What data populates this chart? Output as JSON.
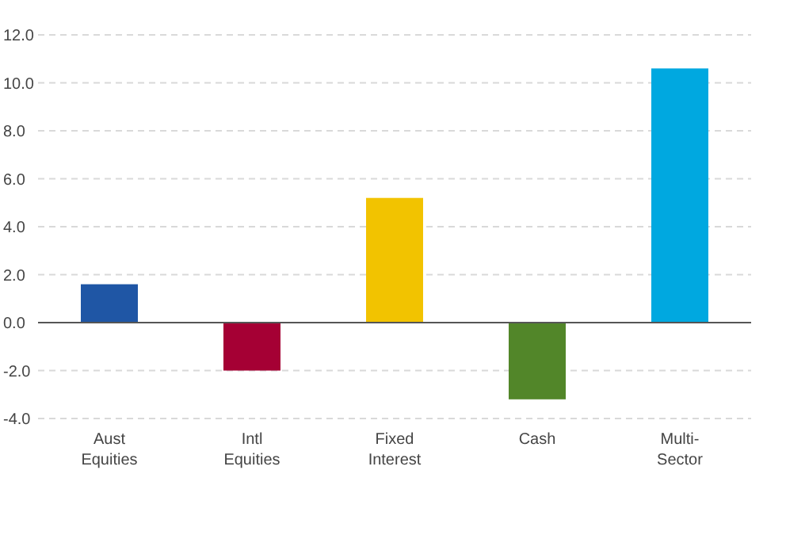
{
  "chart_data": {
    "type": "bar",
    "categories": [
      "Aust\nEquities",
      "Intl\nEquities",
      "Fixed\nInterest",
      "Cash",
      "Multi-\nSector"
    ],
    "values": [
      1.6,
      -2.0,
      5.2,
      -3.2,
      10.6
    ],
    "colors": [
      "#1f56a5",
      "#a50034",
      "#f2c300",
      "#528629",
      "#00a8e0"
    ],
    "ylim": [
      -4,
      12
    ],
    "yticks": [
      {
        "value": -4,
        "label": "-4.0"
      },
      {
        "value": -2,
        "label": "-2.0"
      },
      {
        "value": 0,
        "label": "0.0"
      },
      {
        "value": 2,
        "label": "2.0"
      },
      {
        "value": 4,
        "label": "4.0"
      },
      {
        "value": 6,
        "label": "6.0"
      },
      {
        "value": 8,
        "label": "8.0"
      },
      {
        "value": 10,
        "label": "10.0"
      },
      {
        "value": 12,
        "label": "12.0"
      }
    ],
    "grid": "y"
  }
}
